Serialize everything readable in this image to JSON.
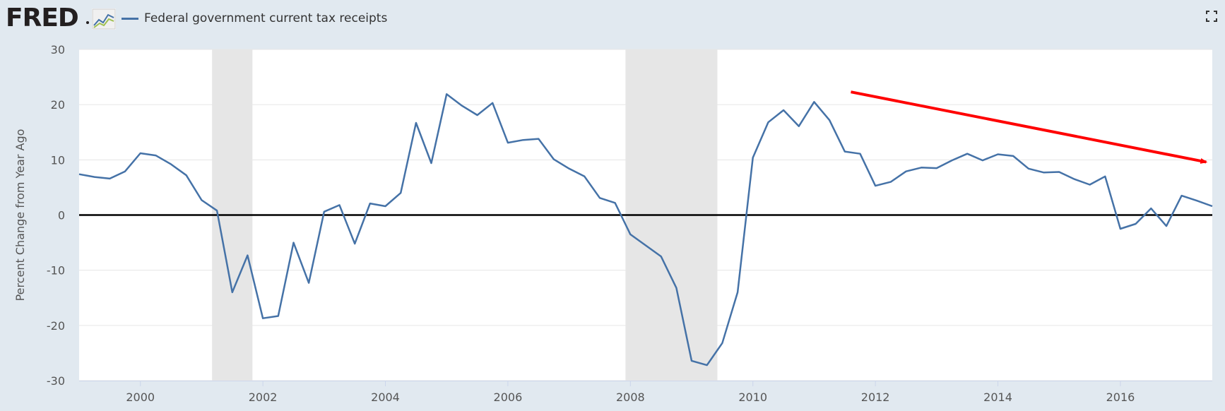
{
  "header": {
    "logo_text": "FRED",
    "logo_graph_icon": "line-chart-icon",
    "fullscreen_icon": "fullscreen-icon"
  },
  "colors": {
    "background": "#e1e9f0",
    "plot_background": "#ffffff",
    "series": "#4572a7",
    "recession_band": "#e6e6e6",
    "zero_line": "#000000",
    "annotation_arrow": "#ff0000",
    "grid": "#e6e6e6"
  },
  "chart_data": {
    "type": "line",
    "title": "",
    "xlabel": "",
    "ylabel": "Percent Change from Year Ago",
    "xlim": [
      1999.0,
      2017.5
    ],
    "ylim": [
      -30,
      30
    ],
    "yticks": [
      30,
      20,
      10,
      0,
      -10,
      -20,
      -30
    ],
    "xticks": [
      2000,
      2002,
      2004,
      2006,
      2008,
      2010,
      2012,
      2014,
      2016
    ],
    "grid": "horizontal",
    "legend_position": "top-left",
    "series": [
      {
        "name": "Federal government current tax receipts",
        "x": [
          1999.0,
          1999.25,
          1999.5,
          1999.75,
          2000.0,
          2000.25,
          2000.5,
          2000.75,
          2001.0,
          2001.25,
          2001.5,
          2001.75,
          2002.0,
          2002.25,
          2002.5,
          2002.75,
          2003.0,
          2003.25,
          2003.5,
          2003.75,
          2004.0,
          2004.25,
          2004.5,
          2004.75,
          2005.0,
          2005.25,
          2005.5,
          2005.75,
          2006.0,
          2006.25,
          2006.5,
          2006.75,
          2007.0,
          2007.25,
          2007.5,
          2007.75,
          2008.0,
          2008.25,
          2008.5,
          2008.75,
          2009.0,
          2009.25,
          2009.5,
          2009.75,
          2010.0,
          2010.25,
          2010.5,
          2010.75,
          2011.0,
          2011.25,
          2011.5,
          2011.75,
          2012.0,
          2012.25,
          2012.5,
          2012.75,
          2013.0,
          2013.25,
          2013.5,
          2013.75,
          2014.0,
          2014.25,
          2014.5,
          2014.75,
          2015.0,
          2015.25,
          2015.5,
          2015.75,
          2016.0,
          2016.25,
          2016.5,
          2016.75,
          2017.0,
          2017.25,
          2017.5
        ],
        "values": [
          7.4,
          6.9,
          6.6,
          7.9,
          11.2,
          10.8,
          9.2,
          7.2,
          2.7,
          0.8,
          -14.0,
          -7.3,
          -18.7,
          -18.3,
          -5.0,
          -12.3,
          0.6,
          1.8,
          -5.2,
          2.1,
          1.6,
          4.0,
          16.7,
          9.4,
          21.9,
          19.8,
          18.1,
          20.3,
          13.1,
          13.6,
          13.8,
          10.1,
          8.4,
          7.0,
          3.1,
          2.2,
          -3.5,
          -5.5,
          -7.5,
          -13.2,
          -26.4,
          -27.2,
          -23.2,
          -14.0,
          10.4,
          16.8,
          19.0,
          16.1,
          20.5,
          17.2,
          11.5,
          11.1,
          5.3,
          6.0,
          7.9,
          8.6,
          8.5,
          9.9,
          11.1,
          9.9,
          11.0,
          10.7,
          8.4,
          7.7,
          7.8,
          6.5,
          5.5,
          7.0,
          -2.5,
          -1.6,
          1.2,
          -2.0,
          3.5,
          2.6,
          1.6
        ]
      }
    ],
    "recessions": [
      [
        2001.17,
        2001.83
      ],
      [
        2007.92,
        2009.42
      ]
    ],
    "reference_line": 0,
    "annotation_arrow": {
      "x": [
        2011.6,
        2017.4
      ],
      "y": [
        22.3,
        9.6
      ]
    }
  }
}
